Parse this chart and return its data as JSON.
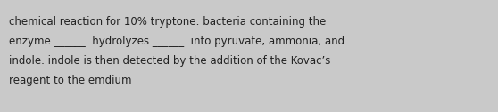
{
  "text_line1": "chemical reaction for 10% tryptone: bacteria containing the",
  "text_line2": "enzyme ______  hydrolyzes ______  into pyruvate, ammonia, and",
  "text_line3": "indole. indole is then detected by the addition of the Kovac’s",
  "text_line4": "reagent to the emdium",
  "background_color": "#c9c9c9",
  "text_color": "#222222",
  "font_size": 8.5,
  "fig_width": 5.58,
  "fig_height": 1.26,
  "dpi": 100
}
